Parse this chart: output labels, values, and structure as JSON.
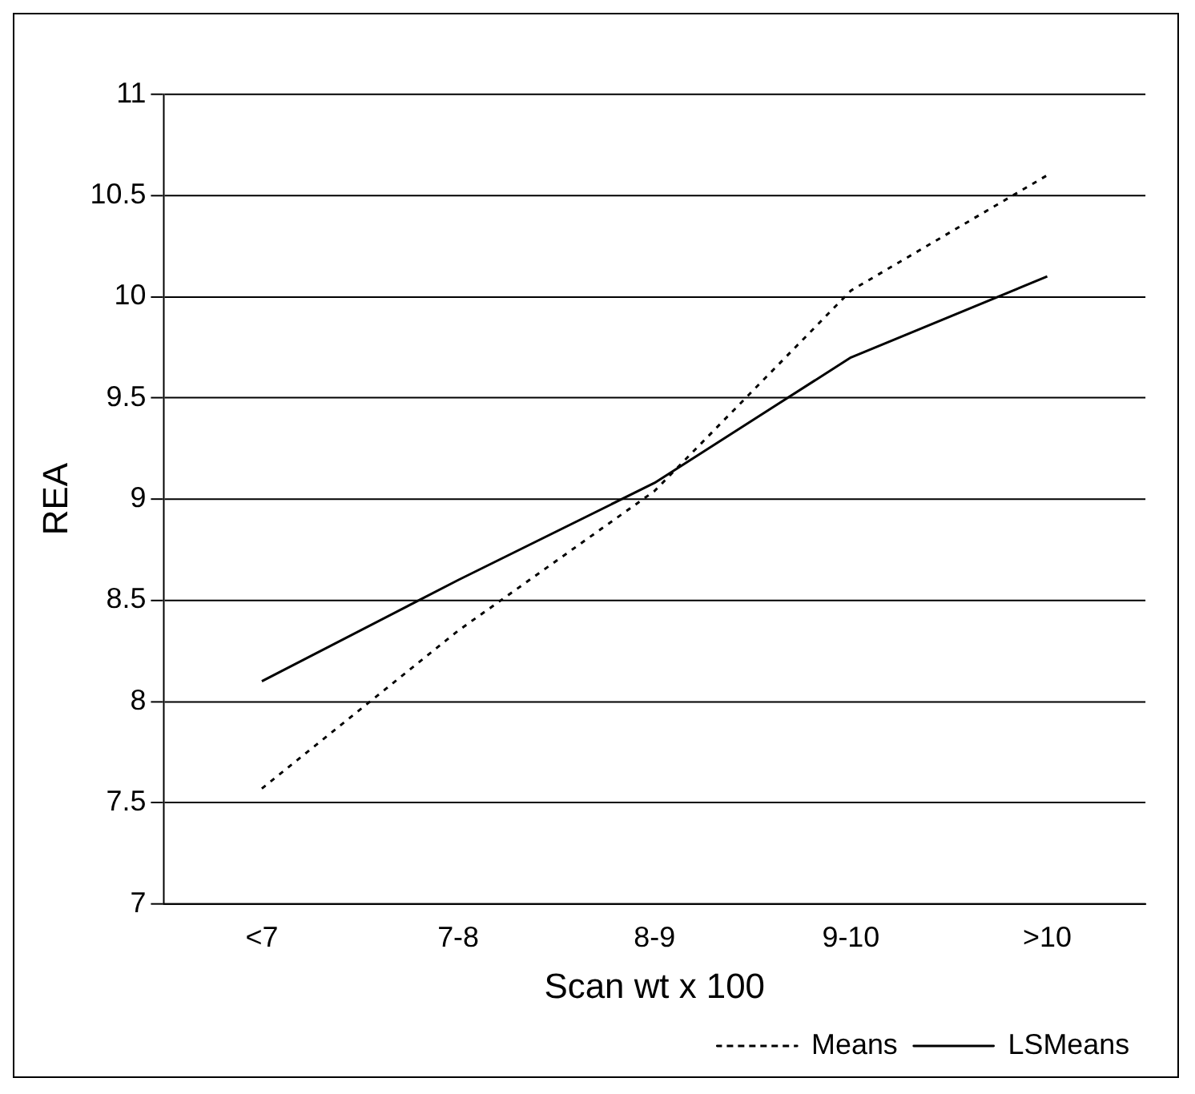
{
  "chart_data": {
    "type": "line",
    "xlabel": "Scan wt x 100",
    "ylabel": "REA",
    "categories": [
      "<7",
      "7-8",
      "8-9",
      "9-10",
      ">10"
    ],
    "series": [
      {
        "name": "Means",
        "color": "#000000",
        "line_style": "dotted",
        "values": [
          7.57,
          8.35,
          9.04,
          10.03,
          10.6
        ]
      },
      {
        "name": "LSMeans",
        "color": "#000000",
        "line_style": "solid",
        "values": [
          8.1,
          8.6,
          9.08,
          9.7,
          10.1
        ]
      }
    ],
    "ylim": [
      7,
      11
    ],
    "yticks": [
      7,
      7.5,
      8,
      8.5,
      9,
      9.5,
      10,
      10.5,
      11
    ],
    "grid": "y",
    "legend": "bottom right",
    "marker": "none"
  }
}
